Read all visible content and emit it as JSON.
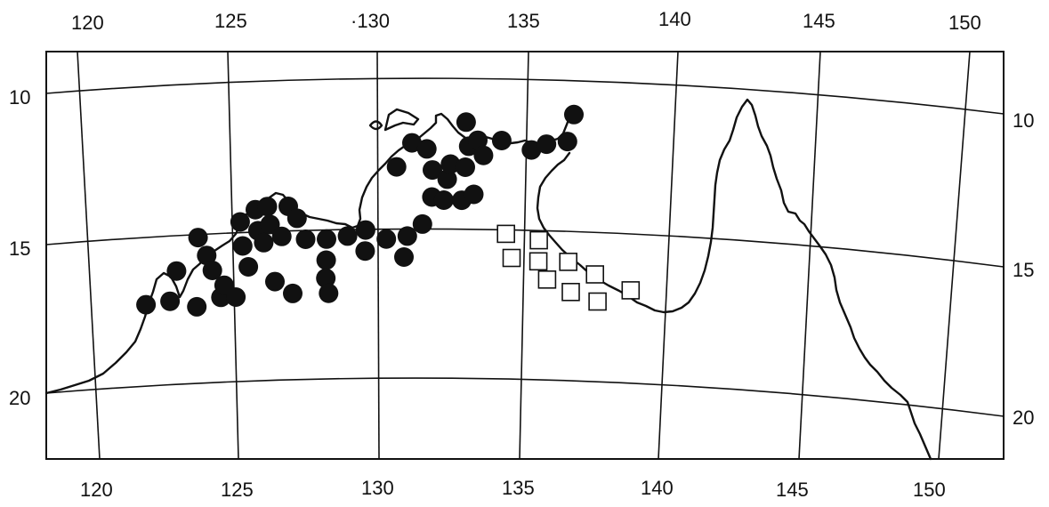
{
  "map": {
    "top_longitude_labels": [
      "120",
      "125",
      "·130",
      "135",
      "140",
      "145",
      "150"
    ],
    "bottom_longitude_labels": [
      "120",
      "125",
      "130",
      "135",
      "140",
      "145",
      "150"
    ],
    "left_latitude_labels": [
      "10",
      "15",
      "20"
    ],
    "right_latitude_labels": [
      "10",
      "15",
      "20"
    ],
    "colors": {
      "ink": "#111111",
      "background": "#ffffff"
    },
    "filled_circle_sites": [
      {
        "lon": 122.3,
        "lat": 16.9
      },
      {
        "lon": 123.1,
        "lat": 16.8
      },
      {
        "lon": 123.3,
        "lat": 15.8
      },
      {
        "lon": 124.0,
        "lat": 17.0
      },
      {
        "lon": 124.0,
        "lat": 14.7
      },
      {
        "lon": 124.3,
        "lat": 15.3
      },
      {
        "lon": 124.5,
        "lat": 15.8
      },
      {
        "lon": 124.8,
        "lat": 16.7
      },
      {
        "lon": 124.9,
        "lat": 16.3
      },
      {
        "lon": 125.3,
        "lat": 16.7
      },
      {
        "lon": 125.4,
        "lat": 14.2
      },
      {
        "lon": 125.5,
        "lat": 15.0
      },
      {
        "lon": 125.7,
        "lat": 15.7
      },
      {
        "lon": 125.9,
        "lat": 13.8
      },
      {
        "lon": 126.0,
        "lat": 14.5
      },
      {
        "lon": 126.2,
        "lat": 14.9
      },
      {
        "lon": 126.3,
        "lat": 13.7
      },
      {
        "lon": 126.4,
        "lat": 14.3
      },
      {
        "lon": 126.6,
        "lat": 16.2
      },
      {
        "lon": 126.8,
        "lat": 14.7
      },
      {
        "lon": 127.0,
        "lat": 13.7
      },
      {
        "lon": 127.2,
        "lat": 16.6
      },
      {
        "lon": 127.3,
        "lat": 14.1
      },
      {
        "lon": 127.6,
        "lat": 14.8
      },
      {
        "lon": 128.3,
        "lat": 14.8
      },
      {
        "lon": 128.3,
        "lat": 15.5
      },
      {
        "lon": 128.3,
        "lat": 16.1
      },
      {
        "lon": 128.4,
        "lat": 16.6
      },
      {
        "lon": 129.0,
        "lat": 14.7
      },
      {
        "lon": 129.6,
        "lat": 15.2
      },
      {
        "lon": 129.6,
        "lat": 14.5
      },
      {
        "lon": 130.3,
        "lat": 14.8
      },
      {
        "lon": 130.6,
        "lat": 12.4
      },
      {
        "lon": 130.9,
        "lat": 15.4
      },
      {
        "lon": 131.0,
        "lat": 14.7
      },
      {
        "lon": 131.1,
        "lat": 11.6
      },
      {
        "lon": 131.5,
        "lat": 14.3
      },
      {
        "lon": 131.6,
        "lat": 11.8
      },
      {
        "lon": 131.8,
        "lat": 12.5
      },
      {
        "lon": 131.8,
        "lat": 13.4
      },
      {
        "lon": 132.2,
        "lat": 13.5
      },
      {
        "lon": 132.3,
        "lat": 12.8
      },
      {
        "lon": 132.4,
        "lat": 12.3
      },
      {
        "lon": 132.8,
        "lat": 13.5
      },
      {
        "lon": 132.9,
        "lat": 12.4
      },
      {
        "lon": 132.9,
        "lat": 10.9
      },
      {
        "lon": 133.0,
        "lat": 11.7
      },
      {
        "lon": 133.2,
        "lat": 13.3
      },
      {
        "lon": 133.3,
        "lat": 11.5
      },
      {
        "lon": 133.5,
        "lat": 12.0
      },
      {
        "lon": 134.1,
        "lat": 11.5
      },
      {
        "lon": 135.1,
        "lat": 11.8
      },
      {
        "lon": 135.6,
        "lat": 11.6
      },
      {
        "lon": 136.3,
        "lat": 11.5
      },
      {
        "lon": 136.5,
        "lat": 10.6
      }
    ],
    "open_square_sites": [
      {
        "lon": 134.3,
        "lat": 14.6
      },
      {
        "lon": 134.5,
        "lat": 15.4
      },
      {
        "lon": 135.4,
        "lat": 14.8
      },
      {
        "lon": 135.4,
        "lat": 15.5
      },
      {
        "lon": 135.7,
        "lat": 16.1
      },
      {
        "lon": 136.4,
        "lat": 15.5
      },
      {
        "lon": 136.5,
        "lat": 16.5
      },
      {
        "lon": 137.3,
        "lat": 15.9
      },
      {
        "lon": 137.4,
        "lat": 16.8
      },
      {
        "lon": 138.5,
        "lat": 16.4
      }
    ]
  }
}
